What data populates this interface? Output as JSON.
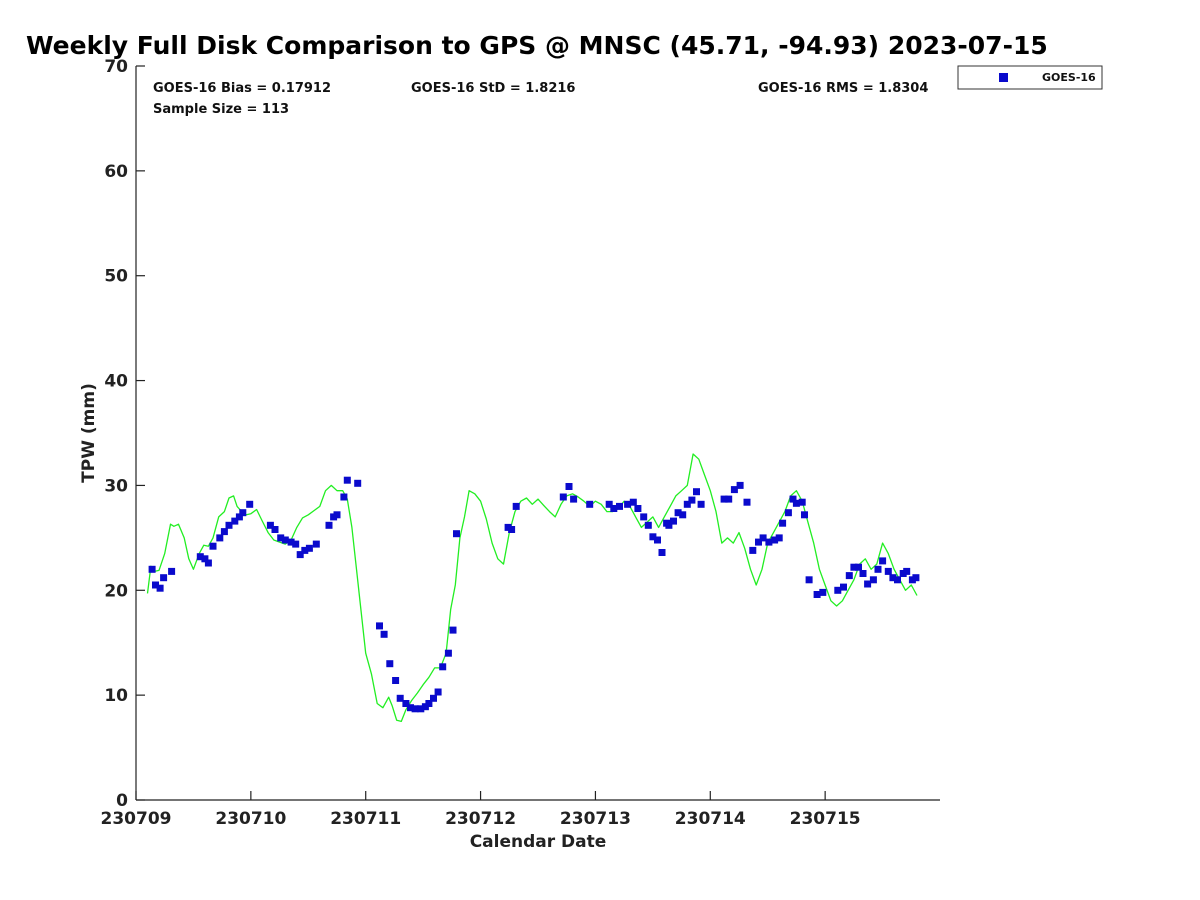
{
  "chart_data": {
    "type": "scatter",
    "title": "Weekly Full Disk Comparison to GPS @ MNSC (45.71, -94.93) 2023-07-15",
    "xlabel": "Calendar Date",
    "ylabel": "TPW (mm)",
    "xlim": [
      0,
      7
    ],
    "ylim": [
      0,
      70
    ],
    "x_ticks": [
      {
        "x": 0,
        "label": "230709"
      },
      {
        "x": 1,
        "label": "230710"
      },
      {
        "x": 2,
        "label": "230711"
      },
      {
        "x": 3,
        "label": "230712"
      },
      {
        "x": 4,
        "label": "230713"
      },
      {
        "x": 5,
        "label": "230714"
      },
      {
        "x": 6,
        "label": "230715"
      }
    ],
    "y_ticks": [
      0,
      10,
      20,
      30,
      40,
      50,
      60,
      70
    ],
    "grid": false,
    "legend_position": "top-right",
    "stats": {
      "bias": "GOES-16 Bias = 0.17912",
      "std": "GOES-16 StD = 1.8216",
      "rms": "GOES-16 RMS = 1.8304",
      "sample": "Sample Size = 113"
    },
    "series": [
      {
        "name": "GOES-16",
        "kind": "points",
        "color": "#0a0acc",
        "x": [
          0.14,
          0.17,
          0.21,
          0.24,
          0.31,
          0.56,
          0.6,
          0.63,
          0.67,
          0.73,
          0.77,
          0.81,
          0.86,
          0.9,
          0.93,
          0.99,
          1.17,
          1.21,
          1.26,
          1.3,
          1.35,
          1.39,
          1.43,
          1.47,
          1.51,
          1.57,
          1.68,
          1.72,
          1.75,
          1.81,
          1.84,
          1.93,
          2.12,
          2.16,
          2.21,
          2.26,
          2.3,
          2.35,
          2.39,
          2.43,
          2.48,
          2.52,
          2.55,
          2.59,
          2.63,
          2.67,
          2.72,
          2.76,
          2.79,
          3.24,
          3.27,
          3.31,
          3.72,
          3.77,
          3.81,
          3.95,
          4.12,
          4.16,
          4.21,
          4.28,
          4.33,
          4.37,
          4.42,
          4.46,
          4.5,
          4.54,
          4.58,
          4.62,
          4.64,
          4.68,
          4.72,
          4.76,
          4.8,
          4.84,
          4.88,
          4.92,
          5.12,
          5.16,
          5.21,
          5.26,
          5.32,
          5.37,
          5.42,
          5.46,
          5.51,
          5.56,
          5.6,
          5.63,
          5.68,
          5.72,
          5.75,
          5.8,
          5.82,
          5.86,
          5.93,
          5.98,
          6.11,
          6.16,
          6.21,
          6.25,
          6.29,
          6.33,
          6.37,
          6.42,
          6.46,
          6.5,
          6.55,
          6.59,
          6.63,
          6.68,
          6.71,
          6.76,
          6.79
        ],
        "y": [
          22.0,
          20.5,
          20.2,
          21.2,
          21.8,
          23.2,
          23.0,
          22.6,
          24.2,
          25.0,
          25.6,
          26.2,
          26.6,
          27.0,
          27.4,
          28.2,
          26.2,
          25.8,
          25.0,
          24.8,
          24.6,
          24.4,
          23.4,
          23.8,
          24.0,
          24.4,
          26.2,
          27.0,
          27.2,
          28.9,
          30.5,
          30.2,
          16.6,
          15.8,
          13.0,
          11.4,
          9.7,
          9.2,
          8.8,
          8.7,
          8.7,
          8.9,
          9.2,
          9.7,
          10.3,
          12.7,
          14.0,
          16.2,
          25.4,
          26.0,
          25.8,
          28.0,
          28.9,
          29.9,
          28.7,
          28.2,
          28.2,
          27.8,
          28.0,
          28.2,
          28.4,
          27.8,
          27.0,
          26.2,
          25.1,
          24.8,
          23.6,
          26.4,
          26.2,
          26.6,
          27.4,
          27.2,
          28.2,
          28.6,
          29.4,
          28.2,
          28.7,
          28.7,
          29.6,
          30.0,
          28.4,
          23.8,
          24.6,
          25.0,
          24.6,
          24.8,
          25.0,
          26.4,
          27.4,
          28.7,
          28.3,
          28.4,
          27.2,
          21.0,
          19.6,
          19.8,
          20.0,
          20.3,
          21.4,
          22.2,
          22.2,
          21.6,
          20.6,
          21.0,
          22.0,
          22.8,
          21.8,
          21.2,
          21.0,
          21.6,
          21.8,
          21.0,
          21.2
        ]
      },
      {
        "name": "GPS",
        "kind": "line",
        "color": "#22ee22",
        "x": [
          0.1,
          0.13,
          0.16,
          0.2,
          0.25,
          0.3,
          0.33,
          0.37,
          0.42,
          0.46,
          0.5,
          0.55,
          0.59,
          0.63,
          0.67,
          0.72,
          0.77,
          0.81,
          0.85,
          0.88,
          0.92,
          0.96,
          1.0,
          1.05,
          1.1,
          1.15,
          1.2,
          1.25,
          1.3,
          1.35,
          1.4,
          1.45,
          1.5,
          1.55,
          1.6,
          1.65,
          1.7,
          1.75,
          1.8,
          1.84,
          1.88,
          1.92,
          1.96,
          2.0,
          2.05,
          2.1,
          2.15,
          2.2,
          2.23,
          2.27,
          2.31,
          2.35,
          2.4,
          2.45,
          2.5,
          2.55,
          2.6,
          2.65,
          2.7,
          2.74,
          2.78,
          2.82,
          2.86,
          2.9,
          2.95,
          3.0,
          3.05,
          3.1,
          3.15,
          3.2,
          3.25,
          3.3,
          3.35,
          3.4,
          3.45,
          3.5,
          3.55,
          3.6,
          3.65,
          3.7,
          3.75,
          3.8,
          3.85,
          3.9,
          3.95,
          4.0,
          4.05,
          4.1,
          4.15,
          4.2,
          4.25,
          4.3,
          4.35,
          4.4,
          4.45,
          4.5,
          4.55,
          4.6,
          4.65,
          4.7,
          4.75,
          4.8,
          4.85,
          4.9,
          4.95,
          5.0,
          5.05,
          5.1,
          5.15,
          5.2,
          5.25,
          5.3,
          5.35,
          5.4,
          5.45,
          5.5,
          5.55,
          5.6,
          5.65,
          5.7,
          5.75,
          5.8,
          5.85,
          5.9,
          5.95,
          6.0,
          6.05,
          6.1,
          6.15,
          6.2,
          6.25,
          6.3,
          6.35,
          6.4,
          6.45,
          6.5,
          6.55,
          6.6,
          6.65,
          6.7,
          6.75,
          6.8
        ],
        "y": [
          19.7,
          22.3,
          21.8,
          21.9,
          23.5,
          26.3,
          26.1,
          26.3,
          25.0,
          23.0,
          22.0,
          23.5,
          24.3,
          24.2,
          25.0,
          27.0,
          27.5,
          28.8,
          29.0,
          28.0,
          27.5,
          27.2,
          27.3,
          27.7,
          26.6,
          25.5,
          24.8,
          24.6,
          24.4,
          24.8,
          26.0,
          26.9,
          27.2,
          27.6,
          28.0,
          29.5,
          30.0,
          29.5,
          29.5,
          28.7,
          26.0,
          22.0,
          18.0,
          14.0,
          12.0,
          9.2,
          8.8,
          9.8,
          9.0,
          7.6,
          7.5,
          8.6,
          9.5,
          10.2,
          11.0,
          11.7,
          12.6,
          12.6,
          14.0,
          18.2,
          20.5,
          25.0,
          27.0,
          29.5,
          29.2,
          28.5,
          26.8,
          24.5,
          23.0,
          22.5,
          25.5,
          27.5,
          28.5,
          28.8,
          28.2,
          28.7,
          28.1,
          27.5,
          27.0,
          28.2,
          29.0,
          29.2,
          28.9,
          28.5,
          28.0,
          28.5,
          28.2,
          27.5,
          27.5,
          27.8,
          28.5,
          28.0,
          27.0,
          26.0,
          26.5,
          27.0,
          26.0,
          27.0,
          28.0,
          29.0,
          29.5,
          30.0,
          33.0,
          32.5,
          31.0,
          29.5,
          27.5,
          24.5,
          25.0,
          24.5,
          25.5,
          24.0,
          22.0,
          20.5,
          22.0,
          24.5,
          25.5,
          26.5,
          27.5,
          29.0,
          29.5,
          28.5,
          26.5,
          24.5,
          22.0,
          20.5,
          19.0,
          18.5,
          19.0,
          20.0,
          21.0,
          22.5,
          23.0,
          22.0,
          22.5,
          24.5,
          23.5,
          22.0,
          21.0,
          20.0,
          20.5,
          19.5
        ]
      }
    ]
  }
}
